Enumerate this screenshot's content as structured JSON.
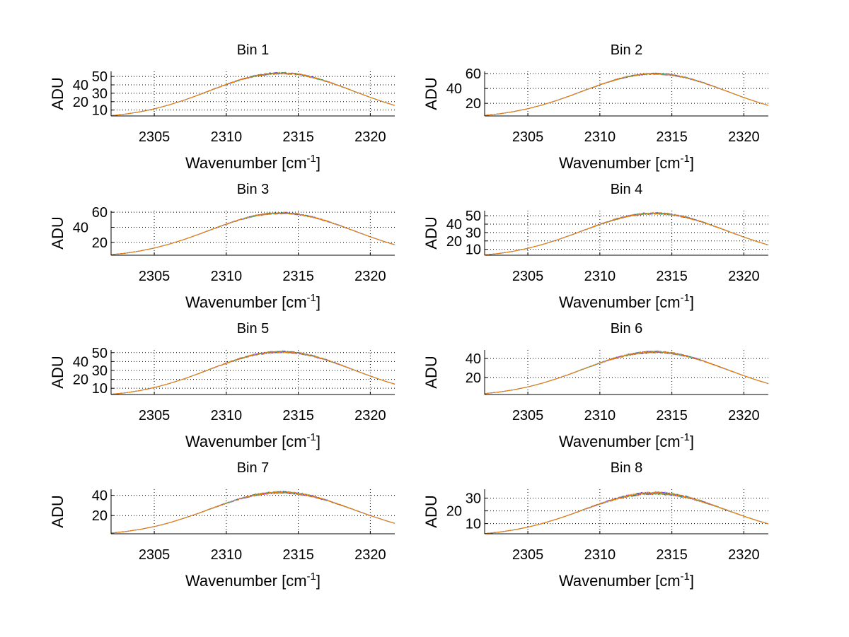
{
  "chart_data": {
    "type": "line",
    "layout": "4 rows x 2 columns subplots",
    "grid": true,
    "xlabel": "Wavenumber [cm",
    "xlabel_sup": "-1",
    "xlabel_close": "]",
    "ylabel": "ADU",
    "xlim": [
      2302,
      2321.7
    ],
    "xticks": [
      2305,
      2310,
      2315,
      2320
    ],
    "x": [
      2302,
      2303,
      2304,
      2305,
      2306,
      2307,
      2308,
      2309,
      2310,
      2311,
      2312,
      2313,
      2314,
      2315,
      2316,
      2317,
      2318,
      2319,
      2320,
      2321,
      2321.7
    ],
    "colors": {
      "line": "#ff8000",
      "under1": "#4040c0",
      "under2": "#8a2be2",
      "under3": "#20a060"
    },
    "subplots": [
      {
        "title": "Bin 1",
        "ylim": [
          3,
          56
        ],
        "yticks": [
          10,
          20,
          30,
          40,
          50
        ],
        "values": [
          3.3,
          5.2,
          7.9,
          11.4,
          16.0,
          21.4,
          27.5,
          34.1,
          40.4,
          46.2,
          50.6,
          53.3,
          54,
          52.5,
          49.0,
          44.0,
          38.0,
          31.5,
          25.1,
          19.2,
          15.5
        ]
      },
      {
        "title": "Bin 2",
        "ylim": [
          3,
          63
        ],
        "yticks": [
          20,
          40,
          60
        ],
        "values": [
          3.7,
          5.8,
          8.8,
          12.7,
          17.8,
          23.8,
          30.6,
          37.9,
          44.9,
          51.3,
          56.2,
          59.2,
          60,
          58.3,
          54.5,
          48.9,
          42.2,
          35.0,
          27.8,
          21.3,
          17.2
        ]
      },
      {
        "title": "Bin 3",
        "ylim": [
          3,
          62
        ],
        "yticks": [
          20,
          40,
          60
        ],
        "values": [
          3.7,
          5.7,
          8.6,
          12.5,
          17.5,
          23.4,
          30.1,
          37.2,
          44.2,
          50.4,
          55.3,
          58.2,
          59,
          57.3,
          53.6,
          48.1,
          41.5,
          34.4,
          27.4,
          20.9,
          16.9
        ]
      },
      {
        "title": "Bin 4",
        "ylim": [
          3,
          56
        ],
        "yticks": [
          10,
          20,
          30,
          40,
          50
        ],
        "values": [
          3.3,
          5.1,
          7.7,
          11.2,
          15.7,
          21.0,
          27.0,
          33.4,
          39.7,
          45.3,
          49.7,
          52.3,
          53,
          51.5,
          48.1,
          43.2,
          37.3,
          30.9,
          24.6,
          18.8,
          15.2
        ]
      },
      {
        "title": "Bin 5",
        "ylim": [
          3,
          53
        ],
        "yticks": [
          10,
          20,
          30,
          40,
          50
        ],
        "values": [
          3.2,
          4.9,
          7.4,
          10.8,
          15.1,
          20.2,
          26.0,
          32.2,
          38.2,
          43.6,
          47.8,
          50.3,
          51,
          49.6,
          46.3,
          41.6,
          35.9,
          29.7,
          23.7,
          18.1,
          14.6
        ]
      },
      {
        "title": "Bin 6",
        "ylim": [
          2,
          49
        ],
        "yticks": [
          20,
          40
        ],
        "values": [
          2.9,
          4.6,
          6.9,
          10.0,
          13.9,
          18.7,
          24.0,
          29.7,
          35.2,
          40.2,
          44.0,
          46.4,
          47,
          45.7,
          42.7,
          38.3,
          33.0,
          27.4,
          21.8,
          16.7,
          13.5
        ]
      },
      {
        "title": "Bin 7",
        "ylim": [
          2,
          46
        ],
        "yticks": [
          20,
          40
        ],
        "values": [
          2.7,
          4.2,
          6.3,
          9.1,
          12.7,
          17.1,
          21.9,
          27.1,
          32.2,
          36.8,
          40.3,
          42.4,
          43,
          41.8,
          39.0,
          35.0,
          30.2,
          25.1,
          20.0,
          15.3,
          12.3
        ]
      },
      {
        "title": "Bin 8",
        "ylim": [
          2,
          37
        ],
        "yticks": [
          10,
          20,
          30
        ],
        "values": [
          2.1,
          3.3,
          5.0,
          7.2,
          10.1,
          13.5,
          17.3,
          21.5,
          25.5,
          29.1,
          31.9,
          33.6,
          34,
          33.0,
          30.9,
          27.7,
          23.9,
          19.8,
          15.8,
          12.1,
          9.8
        ]
      }
    ]
  }
}
